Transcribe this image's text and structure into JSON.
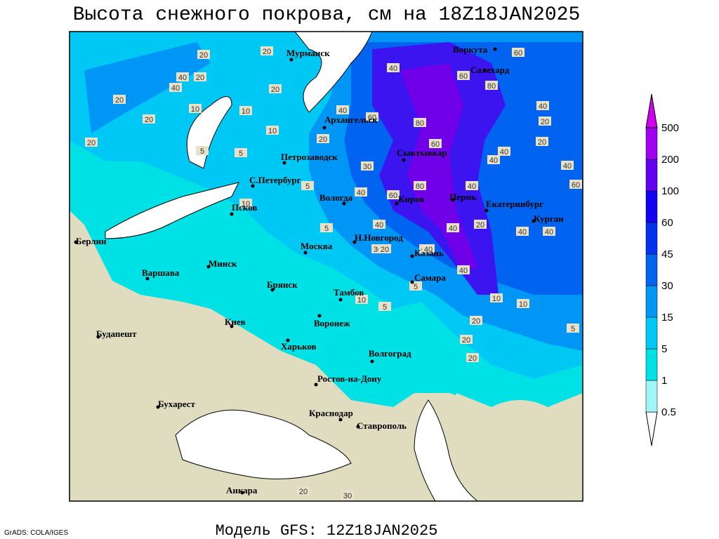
{
  "title": "Высота снежного покрова, см на 18Z18JAN2025",
  "footer": "Модель GFS: 12Z18JAN2025",
  "credit": "GrADS: COLA/IGES",
  "legend": {
    "levels": [
      0.5,
      1,
      5,
      15,
      30,
      45,
      60,
      100,
      200,
      500
    ],
    "colors": [
      "#ffffff",
      "#a0f5f5",
      "#00e1e6",
      "#00c8f5",
      "#0096f5",
      "#0064f0",
      "#0032f0",
      "#1400f0",
      "#6400f0",
      "#a000f0",
      "#d200f0"
    ]
  },
  "cities": [
    "Мурманск",
    "Архангельск",
    "Воркута",
    "Салехард",
    "Петрозаводск",
    "Сыктывкар",
    "С.Петербург",
    "Вологда",
    "Псков",
    "Киров",
    "Пермь",
    "Екатеринбург",
    "Курган",
    "Берлин",
    "Н.Новгород",
    "Москва",
    "Казань",
    "Минск",
    "Варшава",
    "Самара",
    "Брянск",
    "Тамбов",
    "Воронеж",
    "Киев",
    "Будапешт",
    "Харьков",
    "Волгоград",
    "Ростов-на-Дону",
    "Бухарест",
    "Краснодар",
    "Ставрополь",
    "Анкара"
  ],
  "contour_labels": [
    20,
    20,
    40,
    20,
    40,
    20,
    20,
    20,
    10,
    10,
    20,
    5,
    5,
    10,
    20,
    40,
    60,
    40,
    80,
    60,
    80,
    60,
    40,
    20,
    20,
    40,
    30,
    60,
    40,
    40,
    60,
    40,
    40,
    20,
    40,
    40,
    60,
    80,
    60,
    40,
    40,
    5,
    5,
    10,
    30,
    20,
    40,
    40,
    5,
    5,
    10,
    20,
    10,
    10,
    5,
    20,
    20,
    30,
    20
  ]
}
